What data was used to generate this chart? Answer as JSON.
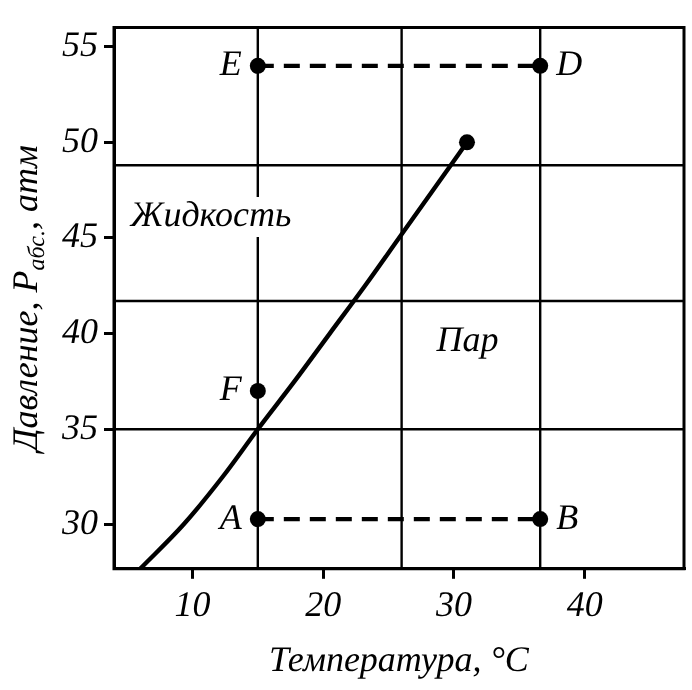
{
  "chart_data": {
    "type": "line",
    "xlabel": "Температура, °C",
    "ylabel": "Давление, P$_{абс.}$, атм",
    "xlim": [
      4,
      47.6
    ],
    "ylim": [
      27.7,
      56
    ],
    "xticks": [
      10,
      20,
      30,
      40
    ],
    "yticks": [
      30,
      35,
      40,
      45,
      50,
      55
    ],
    "grid": false,
    "legend": false,
    "series": [
      {
        "type": "line",
        "color": "#000000",
        "x": [
          6,
          9.3,
          12.3,
          15,
          17.8,
          20.5,
          23.2,
          25.8,
          28.4,
          31
        ],
        "values": [
          27.7,
          30,
          32.5,
          35,
          37.5,
          40,
          42.5,
          45,
          47.5,
          50
        ],
        "marker": "none",
        "line_style": "solid"
      },
      {
        "type": "line",
        "color": "#000000",
        "x": [
          15,
          36.6
        ],
        "values": [
          54,
          54
        ],
        "value_labels": [
          "E",
          "D"
        ],
        "marker": "circle",
        "line_style": "dashed"
      },
      {
        "type": "line",
        "color": "#000000",
        "x": [
          15,
          36.6
        ],
        "values": [
          30.3,
          30.3
        ],
        "value_labels": [
          "A",
          "B"
        ],
        "marker": "circle",
        "line_style": "dashed"
      },
      {
        "type": "scatter",
        "color": "#000000",
        "x": [
          15,
          31
        ],
        "values": [
          37,
          50
        ],
        "value_labels": [
          "F",
          null
        ],
        "marker": "circle"
      }
    ],
    "ref_lines": [
      {
        "axis": "x",
        "value": 15,
        "color": "#000000"
      },
      {
        "axis": "x",
        "value": 26,
        "color": "#000000"
      },
      {
        "axis": "x",
        "value": 36.6,
        "color": "#000000"
      },
      {
        "axis": "y",
        "value": 48.8,
        "color": "#000000"
      },
      {
        "axis": "y",
        "value": 41.7,
        "color": "#000000"
      },
      {
        "axis": "y",
        "value": 35,
        "color": "#000000"
      }
    ],
    "annotations": [
      "Жидкость",
      "Пар"
    ]
  }
}
